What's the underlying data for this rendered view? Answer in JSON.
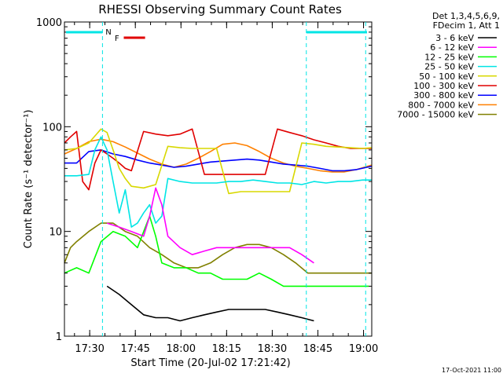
{
  "chart_data": {
    "type": "line",
    "title": "RHESSI Observing Summary Count Rates",
    "xlabel": "Start Time (20-Jul-02 17:21:42)",
    "ylabel": "Count Rate (s⁻¹ detector⁻¹)",
    "y_scale": "log",
    "ylim": [
      1,
      1000
    ],
    "xlim_minutes_since_start": [
      0,
      101
    ],
    "x_ticks": [
      "17:30",
      "17:45",
      "18:00",
      "18:15",
      "18:30",
      "18:45",
      "19:00"
    ],
    "y_ticks": [
      "1",
      "10",
      "100",
      "1000"
    ],
    "legend_header": [
      "Det 1,3,4,5,6,9,",
      "FDecim 1, Att 1"
    ],
    "legend_position": "right",
    "flags": [
      {
        "label": "N",
        "color": "#00e5e5"
      },
      {
        "label": "F",
        "color": "#e00000"
      }
    ],
    "series": [
      {
        "name": "3 - 6 keV",
        "color": "#000000",
        "x": [
          14,
          18,
          22,
          26,
          30,
          34,
          38,
          42,
          46,
          50,
          54,
          58,
          62,
          66,
          70,
          74,
          78,
          82
        ],
        "values": [
          3,
          2.5,
          2,
          1.6,
          1.5,
          1.5,
          1.4,
          1.5,
          1.6,
          1.7,
          1.8,
          1.8,
          1.8,
          1.8,
          1.7,
          1.6,
          1.5,
          1.4
        ]
      },
      {
        "name": "6 - 12 keV",
        "color": "#ff00ff",
        "x": [
          14,
          18,
          22,
          26,
          28,
          30,
          32,
          34,
          38,
          42,
          46,
          50,
          54,
          58,
          62,
          66,
          70,
          74,
          78,
          82
        ],
        "values": [
          12,
          11,
          10,
          9,
          14,
          26,
          18,
          9,
          7,
          6,
          6.5,
          7,
          7,
          7,
          7,
          7,
          7,
          7,
          6,
          5
        ]
      },
      {
        "name": "12 - 25 keV",
        "color": "#00ff00",
        "x": [
          0,
          4,
          8,
          12,
          16,
          20,
          24,
          28,
          30,
          32,
          36,
          40,
          44,
          48,
          52,
          56,
          60,
          64,
          68,
          72,
          76,
          80,
          84,
          88,
          92,
          96,
          100
        ],
        "values": [
          4,
          4.5,
          4,
          8,
          10,
          9,
          7,
          14,
          9,
          5,
          4.5,
          4.5,
          4,
          4,
          3.5,
          3.5,
          3.5,
          4,
          3.5,
          3,
          3,
          3,
          3,
          3,
          3,
          3,
          3
        ]
      },
      {
        "name": "25 - 50 keV",
        "color": "#00e5e5",
        "x": [
          0,
          4,
          8,
          10,
          12,
          14,
          16,
          18,
          20,
          22,
          24,
          26,
          28,
          30,
          32,
          34,
          38,
          42,
          46,
          50,
          54,
          58,
          62,
          66,
          70,
          74,
          78,
          82,
          86,
          90,
          94,
          98,
          101
        ],
        "values": [
          34,
          34,
          35,
          60,
          80,
          60,
          30,
          15,
          25,
          11,
          12,
          15,
          18,
          12,
          14,
          32,
          30,
          29,
          29,
          29,
          30,
          30,
          31,
          30,
          29,
          29,
          28,
          30,
          29,
          30,
          30,
          31,
          31
        ]
      },
      {
        "name": "50 - 100 keV",
        "color": "#d8d800",
        "x": [
          0,
          4,
          8,
          12,
          14,
          16,
          18,
          20,
          22,
          26,
          30,
          34,
          38,
          42,
          46,
          50,
          54,
          58,
          62,
          66,
          70,
          74,
          78,
          82,
          86,
          90,
          94,
          98,
          101
        ],
        "values": [
          60,
          62,
          70,
          95,
          88,
          60,
          40,
          32,
          27,
          26,
          28,
          65,
          63,
          62,
          62,
          62,
          23,
          24,
          24,
          24,
          24,
          24,
          70,
          68,
          65,
          64,
          63,
          62,
          63
        ]
      },
      {
        "name": "100 - 300 keV",
        "color": "#e00000",
        "x": [
          0,
          2,
          4,
          6,
          8,
          10,
          12,
          14,
          16,
          18,
          20,
          22,
          26,
          30,
          34,
          38,
          42,
          46,
          50,
          54,
          58,
          62,
          66,
          70,
          74,
          78,
          82,
          86,
          90,
          94,
          98,
          101
        ],
        "values": [
          70,
          80,
          90,
          30,
          25,
          45,
          60,
          55,
          50,
          45,
          40,
          38,
          90,
          85,
          82,
          85,
          95,
          35,
          35,
          35,
          35,
          35,
          35,
          95,
          88,
          82,
          75,
          70,
          65,
          62,
          62,
          62
        ]
      },
      {
        "name": "300 - 800 keV",
        "color": "#0000ff",
        "x": [
          0,
          4,
          8,
          12,
          16,
          20,
          24,
          28,
          32,
          36,
          40,
          44,
          48,
          52,
          56,
          60,
          64,
          68,
          72,
          76,
          80,
          84,
          88,
          92,
          96,
          101
        ],
        "values": [
          45,
          45,
          58,
          60,
          55,
          52,
          48,
          45,
          43,
          41,
          42,
          44,
          46,
          47,
          48,
          49,
          48,
          46,
          44,
          43,
          42,
          40,
          38,
          38,
          39,
          42
        ]
      },
      {
        "name": "800 - 7000 keV",
        "color": "#ff8000",
        "x": [
          0,
          4,
          8,
          12,
          16,
          20,
          24,
          28,
          32,
          36,
          40,
          44,
          48,
          52,
          56,
          60,
          64,
          68,
          72,
          76,
          80,
          84,
          88,
          92,
          96,
          101
        ],
        "values": [
          55,
          62,
          72,
          76,
          72,
          64,
          56,
          49,
          44,
          41,
          44,
          50,
          58,
          68,
          70,
          66,
          58,
          50,
          45,
          42,
          40,
          38,
          37,
          37,
          39,
          43
        ]
      },
      {
        "name": "7000 - 15000 keV",
        "color": "#808000",
        "x": [
          0,
          2,
          4,
          8,
          12,
          16,
          20,
          24,
          28,
          32,
          36,
          40,
          44,
          48,
          52,
          56,
          60,
          64,
          68,
          72,
          76,
          80,
          84,
          88,
          92,
          96,
          101
        ],
        "values": [
          5,
          7,
          8,
          10,
          12,
          12,
          10,
          9,
          7,
          6,
          5,
          4.5,
          4.5,
          5,
          6,
          7,
          7.5,
          7.5,
          7,
          6,
          5,
          4,
          4,
          4,
          4,
          4,
          4
        ]
      }
    ]
  },
  "footer": {
    "date_stamp": "17-Oct-2021 11:00"
  }
}
